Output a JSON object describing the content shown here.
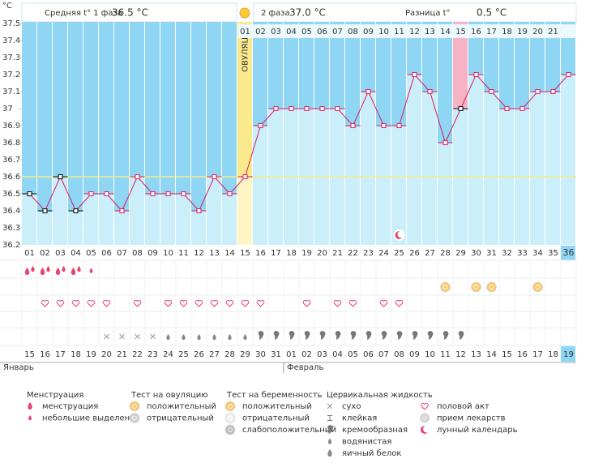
{
  "chart_data": {
    "type": "line",
    "y_label": "°C",
    "header": {
      "phase1_label": "Средняя t° 1 фаза",
      "phase1_value": "36.5 °C",
      "phase2_label": "2 фаза",
      "phase2_value": "37.0 °C",
      "diff_label": "Разница t°",
      "diff_value": "0.5 °C"
    },
    "ovulation_label": "ОВУЛЯЦИЯ",
    "categories": [
      "01",
      "02",
      "03",
      "04",
      "05",
      "06",
      "07",
      "08",
      "09",
      "10",
      "11",
      "12",
      "13",
      "14",
      "15",
      "16",
      "17",
      "18",
      "19",
      "20",
      "21",
      "22",
      "23",
      "24",
      "25",
      "26",
      "27",
      "28",
      "29",
      "30",
      "31",
      "32",
      "33",
      "34",
      "35",
      "36"
    ],
    "values": [
      36.5,
      36.4,
      36.6,
      36.4,
      36.5,
      36.5,
      36.4,
      36.6,
      36.5,
      36.5,
      36.5,
      36.4,
      36.6,
      36.5,
      36.6,
      36.9,
      37.0,
      37.0,
      37.0,
      37.0,
      37.0,
      36.9,
      37.1,
      36.9,
      36.9,
      37.2,
      37.1,
      36.8,
      37.0,
      37.2,
      37.1,
      37.0,
      37.0,
      37.1,
      37.1,
      37.2
    ],
    "color": "#d81b60",
    "phase2_days": [
      "01",
      "02",
      "03",
      "04",
      "05",
      "06",
      "07",
      "08",
      "09",
      "10",
      "11",
      "12",
      "13",
      "14",
      "15",
      "16",
      "17",
      "18",
      "19",
      "20",
      "21"
    ],
    "ovulation_day": 15,
    "highlight_day": 29,
    "today_day": 36,
    "cover_line": 36.6,
    "flagged_days": [
      1,
      2,
      3,
      4,
      29
    ],
    "ylim": [
      36.2,
      37.5
    ],
    "yticks": [
      36.2,
      36.3,
      36.4,
      36.5,
      36.6,
      36.7,
      36.8,
      36.9,
      37,
      37.1,
      37.2,
      37.3,
      37.4,
      37.5
    ],
    "dates": [
      "15",
      "16",
      "17",
      "18",
      "19",
      "20",
      "21",
      "22",
      "23",
      "24",
      "25",
      "26",
      "27",
      "28",
      "29",
      "30",
      "31",
      "01",
      "02",
      "03",
      "04",
      "05",
      "06",
      "07",
      "08",
      "09",
      "10",
      "11",
      "12",
      "13",
      "14",
      "15",
      "16",
      "17",
      "18",
      "19"
    ],
    "weekend_dates": [
      3,
      4,
      10,
      11,
      17,
      18,
      24,
      25,
      31,
      32
    ],
    "months": [
      {
        "label": "Январь",
        "index": 0
      },
      {
        "label": "Февраль",
        "index": 17
      }
    ],
    "symbols": {
      "menstruation": [
        1,
        2,
        3,
        4
      ],
      "spotting": [
        5
      ],
      "pregnancy_positive": [
        28,
        30,
        31,
        34
      ],
      "intercourse": [
        2,
        3,
        4,
        5,
        6,
        8,
        10,
        11,
        12,
        13,
        14,
        15,
        16,
        19,
        21,
        22,
        24,
        25
      ],
      "dry": [
        6,
        7,
        8,
        9
      ],
      "watery": [
        10,
        11,
        12,
        13,
        14,
        15
      ],
      "creamy": [
        16,
        17,
        18,
        19,
        20,
        21,
        22,
        23,
        24,
        25,
        26,
        27,
        28,
        29
      ],
      "lunar": [
        25
      ]
    }
  },
  "legend": [
    {
      "title": "Менструация",
      "items": [
        "менструация",
        "небольшие выделения"
      ]
    },
    {
      "title": "Тест на овуляцию",
      "items": [
        "положительный",
        "отрицательный"
      ]
    },
    {
      "title": "Тест на беременность",
      "items": [
        "положительный",
        "отрицательный",
        "слабоположительный"
      ]
    },
    {
      "title": "Цервикальная жидкость",
      "items": [
        "сухо",
        "клейкая",
        "кремообразная",
        "водянистая",
        "яичный белок"
      ]
    },
    {
      "items": [
        "половой акт",
        "прием лекарств",
        "лунный календарь"
      ]
    }
  ]
}
